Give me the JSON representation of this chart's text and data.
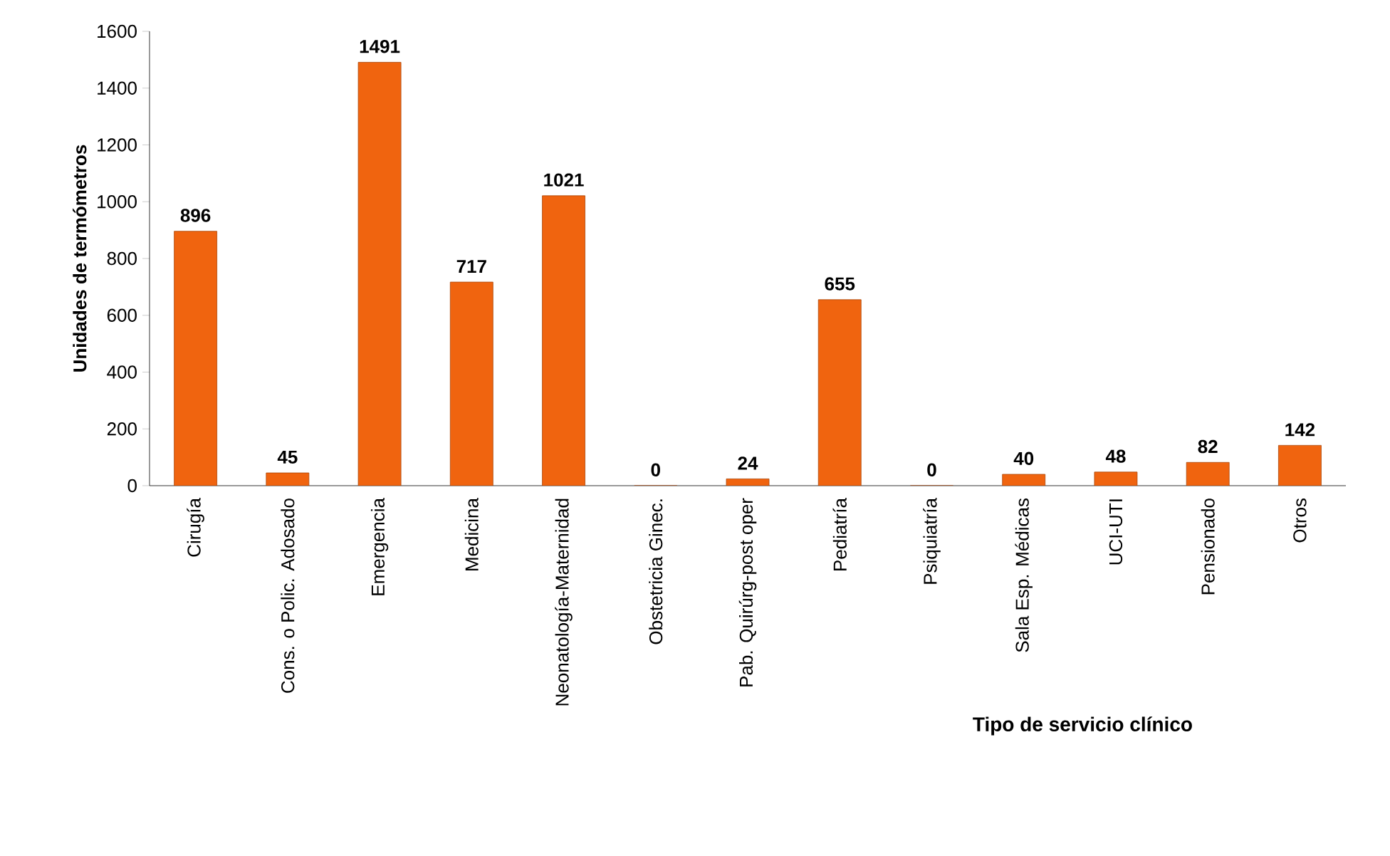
{
  "chart_data": {
    "type": "bar",
    "xlabel": "Tipo de servicio clínico",
    "ylabel": "Unidades de termómetros",
    "categories": [
      "Cirugía",
      "Cons. o Polic. Adosado",
      "Emergencia",
      "Medicina",
      "Neonatología-Maternidad",
      "Obstetricia  Ginec.",
      "Pab. Quirúrg-post oper",
      "Pediatría",
      "Psiquiatría",
      "Sala Esp. Médicas",
      "UCI-UTI",
      "Pensionado",
      "Otros"
    ],
    "values": [
      896,
      45,
      1491,
      717,
      1021,
      0,
      24,
      655,
      0,
      40,
      48,
      82,
      142
    ],
    "color": "#f0640f",
    "data_labels": true,
    "ylim": [
      0,
      1600
    ],
    "yticks": [
      0,
      200,
      400,
      600,
      800,
      1000,
      1200,
      1400,
      1600
    ],
    "grid": false
  }
}
